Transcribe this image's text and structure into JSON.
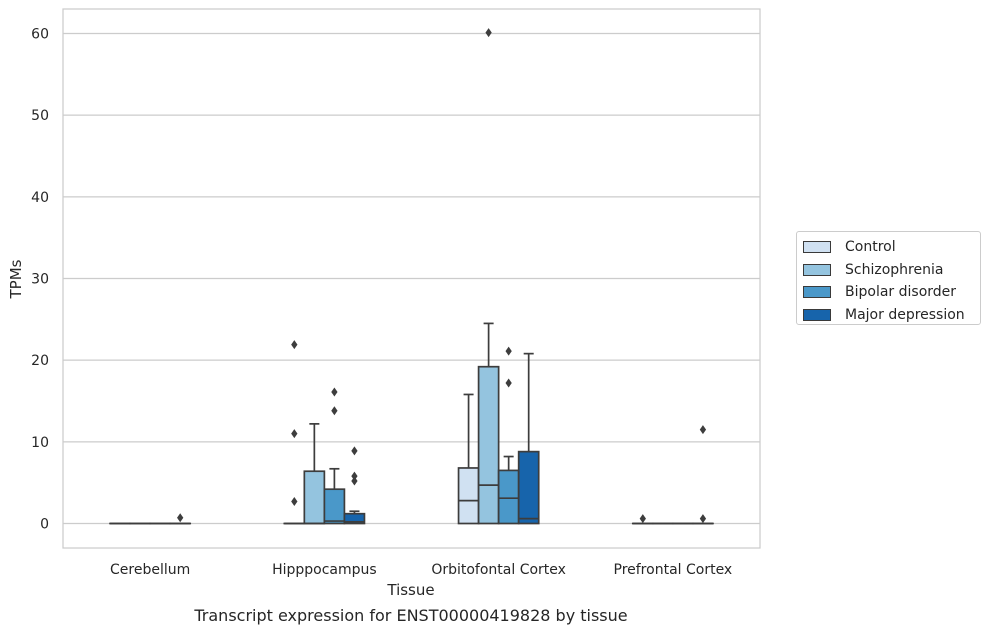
{
  "chart_data": {
    "type": "box",
    "title": "Transcript expression for ENST00000419828 by tissue",
    "xlabel": "Tissue",
    "ylabel": "TPMs",
    "ylim": [
      -3,
      63
    ],
    "yticks": [
      0,
      10,
      20,
      30,
      40,
      50,
      60
    ],
    "grid": true,
    "legend_position": "right",
    "categories": [
      "Cerebellum",
      "Hipppocampus",
      "Orbitofontal Cortex",
      "Prefrontal Cortex"
    ],
    "series": [
      {
        "name": "Control",
        "color": "#d0e1f2",
        "boxes": [
          {
            "q1": 0,
            "median": 0,
            "q3": 0,
            "whislo": 0,
            "whishi": 0,
            "fliers": []
          },
          {
            "q1": 0,
            "median": 0,
            "q3": 0,
            "whislo": 0,
            "whishi": 0,
            "fliers": [
              2.7,
              11.0,
              21.9
            ]
          },
          {
            "q1": 0,
            "median": 2.8,
            "q3": 6.8,
            "whislo": 0,
            "whishi": 15.8,
            "fliers": []
          },
          {
            "q1": 0,
            "median": 0,
            "q3": 0,
            "whislo": 0,
            "whishi": 0,
            "fliers": [
              0.6
            ]
          }
        ]
      },
      {
        "name": "Schizophrenia",
        "color": "#94c4df",
        "boxes": [
          {
            "q1": 0,
            "median": 0,
            "q3": 0,
            "whislo": 0,
            "whishi": 0,
            "fliers": []
          },
          {
            "q1": 0,
            "median": 0,
            "q3": 6.4,
            "whislo": 0,
            "whishi": 12.2,
            "fliers": []
          },
          {
            "q1": 0,
            "median": 4.7,
            "q3": 19.2,
            "whislo": 0,
            "whishi": 24.5,
            "fliers": [
              60.1
            ]
          },
          {
            "q1": 0,
            "median": 0,
            "q3": 0,
            "whislo": 0,
            "whishi": 0,
            "fliers": []
          }
        ]
      },
      {
        "name": "Bipolar disorder",
        "color": "#4a98c9",
        "boxes": [
          {
            "q1": 0,
            "median": 0,
            "q3": 0,
            "whislo": 0,
            "whishi": 0,
            "fliers": []
          },
          {
            "q1": 0,
            "median": 0.3,
            "q3": 4.2,
            "whislo": 0,
            "whishi": 6.7,
            "fliers": [
              13.8,
              16.1
            ]
          },
          {
            "q1": 0,
            "median": 3.1,
            "q3": 6.5,
            "whislo": 0,
            "whishi": 8.2,
            "fliers": [
              17.2,
              21.1
            ]
          },
          {
            "q1": 0,
            "median": 0,
            "q3": 0,
            "whislo": 0,
            "whishi": 0,
            "fliers": []
          }
        ]
      },
      {
        "name": "Major depression",
        "color": "#1764ab",
        "boxes": [
          {
            "q1": 0,
            "median": 0,
            "q3": 0,
            "whislo": 0,
            "whishi": 0,
            "fliers": [
              0.7
            ]
          },
          {
            "q1": 0,
            "median": 0.2,
            "q3": 1.2,
            "whislo": 0,
            "whishi": 1.5,
            "fliers": [
              5.2,
              5.8,
              8.9
            ]
          },
          {
            "q1": 0,
            "median": 0.6,
            "q3": 8.8,
            "whislo": 0,
            "whishi": 20.8,
            "fliers": []
          },
          {
            "q1": 0,
            "median": 0,
            "q3": 0,
            "whislo": 0,
            "whishi": 0,
            "fliers": [
              0.6,
              11.5
            ]
          }
        ]
      }
    ]
  }
}
